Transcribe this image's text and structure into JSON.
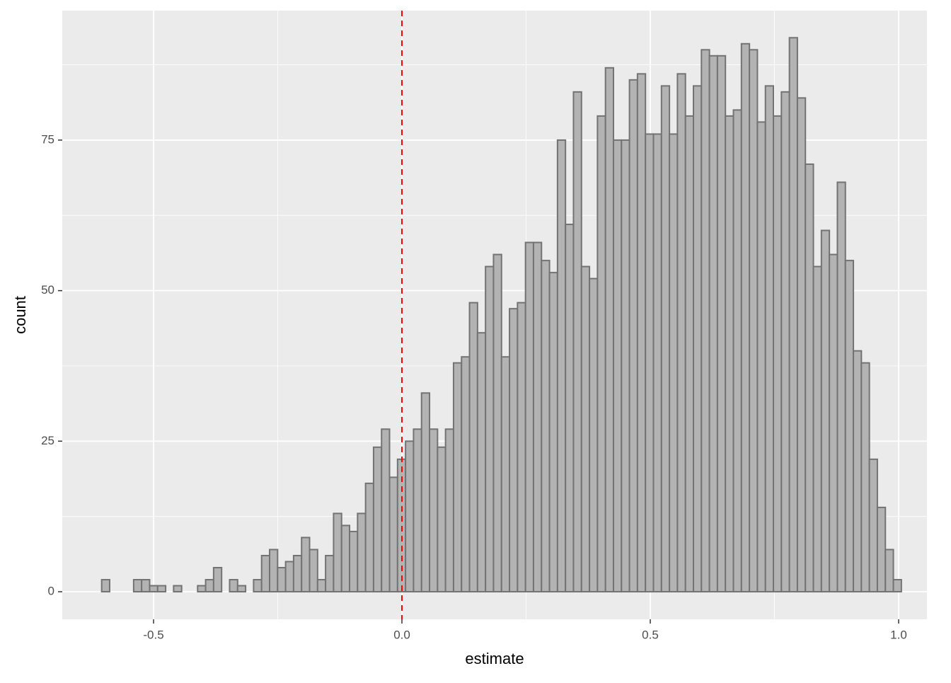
{
  "chart_data": {
    "type": "histogram",
    "x_label": "estimate",
    "y_label": "count",
    "bins": [
      -0.6045,
      -0.5884,
      -0.5723,
      -0.5562,
      -0.5401,
      -0.524,
      -0.5079,
      -0.4918,
      -0.4757,
      -0.4596,
      -0.4435,
      -0.4274,
      -0.4113,
      -0.3952,
      -0.3791,
      -0.363,
      -0.3469,
      -0.3308,
      -0.3147,
      -0.2986,
      -0.2825,
      -0.2664,
      -0.2503,
      -0.2342,
      -0.2181,
      -0.202,
      -0.1859,
      -0.1698,
      -0.1537,
      -0.1376,
      -0.1215,
      -0.1054,
      -0.0893,
      -0.0732,
      -0.0571,
      -0.041,
      -0.0249,
      -0.0088,
      0.0073,
      0.0234,
      0.0395,
      0.0556,
      0.0717,
      0.0878,
      0.1039,
      0.12,
      0.1361,
      0.1522,
      0.1683,
      0.1844,
      0.2005,
      0.2166,
      0.2327,
      0.2488,
      0.2649,
      0.281,
      0.2971,
      0.3132,
      0.3293,
      0.3454,
      0.3615,
      0.3776,
      0.3937,
      0.4098,
      0.4259,
      0.442,
      0.4581,
      0.4742,
      0.4903,
      0.5064,
      0.5225,
      0.5386,
      0.5547,
      0.5708,
      0.5869,
      0.603,
      0.6191,
      0.6352,
      0.6513,
      0.6674,
      0.6835,
      0.6996,
      0.7157,
      0.7318,
      0.7479,
      0.764,
      0.7801,
      0.7962,
      0.8123,
      0.8284,
      0.8445,
      0.8606,
      0.8767,
      0.8928,
      0.9089,
      0.925,
      0.9411,
      0.9572,
      0.9733,
      0.9894,
      1.0055
    ],
    "values": [
      2,
      0,
      0,
      0,
      2,
      2,
      1,
      1,
      0,
      1,
      0,
      0,
      1,
      2,
      4,
      0,
      2,
      1,
      0,
      2,
      6,
      7,
      4,
      5,
      6,
      9,
      7,
      2,
      6,
      13,
      11,
      10,
      13,
      18,
      24,
      27,
      19,
      22,
      25,
      27,
      33,
      27,
      24,
      27,
      38,
      39,
      48,
      43,
      54,
      56,
      39,
      47,
      48,
      58,
      58,
      55,
      53,
      75,
      61,
      83,
      54,
      52,
      79,
      87,
      75,
      75,
      85,
      86,
      76,
      76,
      84,
      76,
      86,
      79,
      84,
      90,
      89,
      89,
      79,
      80,
      91,
      90,
      78,
      84,
      79,
      83,
      92,
      82,
      71,
      54,
      60,
      56,
      68,
      55,
      40,
      38,
      22,
      14,
      7,
      2
    ],
    "color": "#b3b3b3",
    "edge_color": "#737373",
    "xlim": [
      -0.6838,
      1.057
    ],
    "xticks": [
      -0.5,
      {
        "value": 0,
        "label": "0.0"
      },
      0.5,
      {
        "value": 1,
        "label": "1.0"
      }
    ],
    "ylim": [
      -4.58,
      96.5
    ],
    "yticks": [
      0,
      25,
      50,
      75
    ],
    "vline": 0,
    "vline_color": "#ff0000",
    "grid": true
  }
}
